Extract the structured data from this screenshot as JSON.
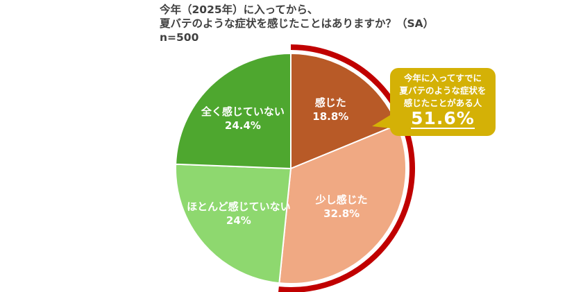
{
  "title": {
    "line1": "今年（2025年）に入ってから、",
    "line2": "夏バテのような症状を感じたことはありますか？（SA）",
    "line3": "n=500"
  },
  "callout": {
    "line1": "今年に入ってすでに",
    "line2": "夏バテのような症状を",
    "line3": "感じたことがある人",
    "value": "51.6%"
  },
  "slices": [
    {
      "label": "感じた",
      "value_text": "18.8%",
      "color": "#b85a27"
    },
    {
      "label": "少し感じた",
      "value_text": "32.8%",
      "color": "#f0a983"
    },
    {
      "label": "ほとんど感じていない",
      "value_text": "24%",
      "color": "#8ed86f"
    },
    {
      "label": "全く感じていない",
      "value_text": "24.4%",
      "color": "#4ea72f"
    }
  ],
  "chart_data": {
    "type": "pie",
    "title": "今年（2025年）に入ってから、夏バテのような症状を感じたことはありますか？（SA） n=500",
    "categories": [
      "感じた",
      "少し感じた",
      "ほとんど感じていない",
      "全く感じていない"
    ],
    "values": [
      18.8,
      32.8,
      24.0,
      24.4
    ],
    "colors": [
      "#b85a27",
      "#f0a983",
      "#8ed86f",
      "#4ea72f"
    ],
    "start_angle": "12 o'clock, clockwise",
    "annotations": [
      {
        "text": "今年に入ってすでに夏バテのような症状を感じたことがある人 51.6%",
        "covers": [
          "感じた",
          "少し感じた"
        ],
        "highlight_color": "#c00000"
      }
    ],
    "legend": "none (labels inside slices)"
  }
}
